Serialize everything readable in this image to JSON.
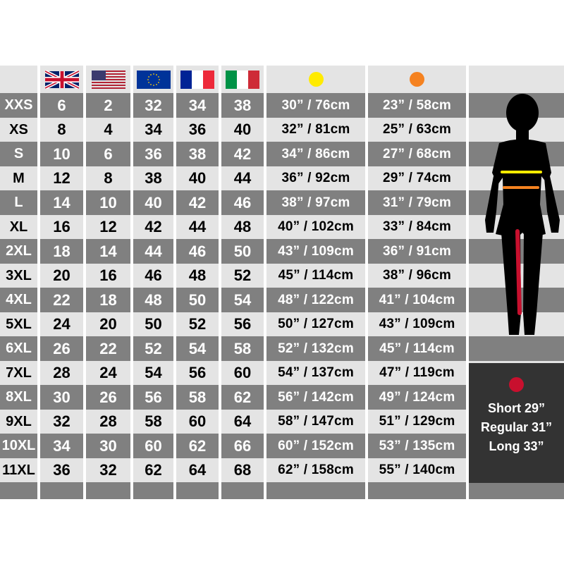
{
  "colors": {
    "bust": "#ffeb00",
    "waist": "#f58220",
    "inseam": "#c8102e",
    "dark_row": "#808080",
    "light_row": "#e4e4e4",
    "length_box": "#333333"
  },
  "header": {
    "flags": [
      "uk-flag",
      "us-flag",
      "eu-flag",
      "france-flag",
      "italy-flag"
    ],
    "measure_dots": [
      "bust-dot-yellow",
      "waist-dot-orange"
    ]
  },
  "rows": [
    {
      "size": "XXS",
      "uk": "6",
      "us": "2",
      "eu": "32",
      "fr": "34",
      "it": "38",
      "bust": "30” / 76cm",
      "waist": "23” / 58cm"
    },
    {
      "size": "XS",
      "uk": "8",
      "us": "4",
      "eu": "34",
      "fr": "36",
      "it": "40",
      "bust": "32” / 81cm",
      "waist": "25” / 63cm"
    },
    {
      "size": "S",
      "uk": "10",
      "us": "6",
      "eu": "36",
      "fr": "38",
      "it": "42",
      "bust": "34” / 86cm",
      "waist": "27” / 68cm"
    },
    {
      "size": "M",
      "uk": "12",
      "us": "8",
      "eu": "38",
      "fr": "40",
      "it": "44",
      "bust": "36” / 92cm",
      "waist": "29” / 74cm"
    },
    {
      "size": "L",
      "uk": "14",
      "us": "10",
      "eu": "40",
      "fr": "42",
      "it": "46",
      "bust": "38” / 97cm",
      "waist": "31” / 79cm"
    },
    {
      "size": "XL",
      "uk": "16",
      "us": "12",
      "eu": "42",
      "fr": "44",
      "it": "48",
      "bust": "40” / 102cm",
      "waist": "33” / 84cm"
    },
    {
      "size": "2XL",
      "uk": "18",
      "us": "14",
      "eu": "44",
      "fr": "46",
      "it": "50",
      "bust": "43” / 109cm",
      "waist": "36” / 91cm"
    },
    {
      "size": "3XL",
      "uk": "20",
      "us": "16",
      "eu": "46",
      "fr": "48",
      "it": "52",
      "bust": "45” / 114cm",
      "waist": "38” / 96cm"
    },
    {
      "size": "4XL",
      "uk": "22",
      "us": "18",
      "eu": "48",
      "fr": "50",
      "it": "54",
      "bust": "48” / 122cm",
      "waist": "41” / 104cm"
    },
    {
      "size": "5XL",
      "uk": "24",
      "us": "20",
      "eu": "50",
      "fr": "52",
      "it": "56",
      "bust": "50” / 127cm",
      "waist": "43” / 109cm"
    },
    {
      "size": "6XL",
      "uk": "26",
      "us": "22",
      "eu": "52",
      "fr": "54",
      "it": "58",
      "bust": "52” / 132cm",
      "waist": "45” / 114cm"
    },
    {
      "size": "7XL",
      "uk": "28",
      "us": "24",
      "eu": "54",
      "fr": "56",
      "it": "60",
      "bust": "54” / 137cm",
      "waist": "47” / 119cm"
    },
    {
      "size": "8XL",
      "uk": "30",
      "us": "26",
      "eu": "56",
      "fr": "58",
      "it": "62",
      "bust": "56” / 142cm",
      "waist": "49” / 124cm"
    },
    {
      "size": "9XL",
      "uk": "32",
      "us": "28",
      "eu": "58",
      "fr": "60",
      "it": "64",
      "bust": "58” / 147cm",
      "waist": "51” / 129cm"
    },
    {
      "size": "10XL",
      "uk": "34",
      "us": "30",
      "eu": "60",
      "fr": "62",
      "it": "66",
      "bust": "60” / 152cm",
      "waist": "53” / 135cm"
    },
    {
      "size": "11XL",
      "uk": "36",
      "us": "32",
      "eu": "62",
      "fr": "64",
      "it": "68",
      "bust": "62” / 158cm",
      "waist": "55” / 140cm"
    }
  ],
  "length_box": {
    "lines": [
      "Short 29”",
      "Regular 31”",
      "Long 33”"
    ]
  }
}
